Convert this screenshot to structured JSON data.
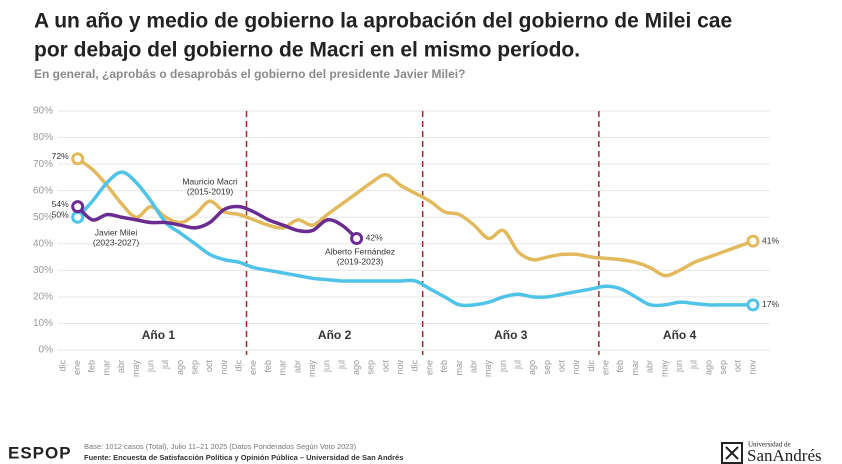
{
  "chart_data": {
    "type": "line",
    "title": [
      "A un año y medio de gobierno la aprobación del gobierno de Milei cae",
      "por debajo del gobierno de Macri en el mismo período."
    ],
    "subtitle": "En general, ¿aprobás o desaprobás el gobierno del presidente Javier Milei?",
    "categories": [
      "dic",
      "ene",
      "feb",
      "mar",
      "abr",
      "may",
      "jun",
      "jul",
      "ago",
      "sep",
      "oct",
      "nov",
      "dic",
      "ene",
      "feb",
      "mar",
      "abr",
      "may",
      "jun",
      "jul",
      "ago",
      "sep",
      "oct",
      "nov",
      "dic",
      "ene",
      "feb",
      "mar",
      "abr",
      "may",
      "jun",
      "jul",
      "ago",
      "sep",
      "oct",
      "nov",
      "dic",
      "ene",
      "feb",
      "mar",
      "abr",
      "may",
      "jun",
      "jul",
      "ago",
      "sep",
      "oct",
      "nov"
    ],
    "ylim": [
      0,
      90
    ],
    "yticks": [
      {
        "value": 0,
        "label": "0%"
      },
      {
        "value": 10,
        "label": "10%"
      },
      {
        "value": 20,
        "label": "20%"
      },
      {
        "value": 30,
        "label": "30%"
      },
      {
        "value": 40,
        "label": "40%"
      },
      {
        "value": 50,
        "label": "50%"
      },
      {
        "value": 60,
        "label": "60%"
      },
      {
        "value": 70,
        "label": "70%"
      },
      {
        "value": 80,
        "label": "80%"
      },
      {
        "value": 90,
        "label": "90%"
      }
    ],
    "grid": true,
    "annotations": [
      "Año 1",
      "Año 2",
      "Año 3",
      "Año 4"
    ],
    "series": [
      {
        "name": "Mauricio Macri",
        "period": "(2015-2019)",
        "color": "#e2b95c",
        "values": [
          null,
          72,
          68,
          62,
          55,
          50,
          54,
          50,
          48,
          51,
          56,
          52,
          51,
          49,
          47,
          46,
          49,
          47,
          51,
          55,
          59,
          63,
          66,
          62,
          59,
          56,
          52,
          51,
          47,
          42,
          45,
          37,
          34,
          35,
          36,
          36,
          35,
          34.5,
          34,
          33,
          31,
          28,
          30,
          33,
          35,
          37,
          39,
          41
        ],
        "value_labels": [
          null,
          "72%",
          null,
          null,
          null,
          null,
          null,
          null,
          null,
          null,
          null,
          null,
          null,
          null,
          null,
          null,
          null,
          null,
          null,
          null,
          null,
          null,
          null,
          null,
          null,
          null,
          null,
          null,
          null,
          null,
          null,
          null,
          null,
          null,
          null,
          null,
          null,
          null,
          null,
          null,
          null,
          null,
          null,
          null,
          null,
          null,
          null,
          "41%"
        ]
      },
      {
        "name": "Alberto Fernández",
        "period": "(2019-2023)",
        "color": "#4fc3e8",
        "values": [
          null,
          50,
          56,
          63,
          67,
          63,
          56,
          48,
          44,
          40,
          36,
          34,
          33,
          31,
          30,
          29,
          28,
          27,
          26.5,
          26,
          26,
          26,
          26,
          26,
          26,
          23,
          20,
          17,
          17,
          18,
          20,
          21,
          20,
          20,
          21,
          22,
          23,
          24,
          23,
          20,
          17,
          17,
          18,
          17.5,
          17,
          17,
          17,
          17
        ],
        "value_labels": [
          null,
          "50%",
          null,
          null,
          null,
          null,
          null,
          null,
          null,
          null,
          null,
          null,
          null,
          null,
          null,
          null,
          null,
          null,
          null,
          null,
          null,
          null,
          null,
          null,
          null,
          null,
          null,
          null,
          null,
          null,
          null,
          null,
          null,
          null,
          null,
          null,
          null,
          null,
          null,
          null,
          null,
          null,
          null,
          null,
          null,
          null,
          null,
          "17%"
        ]
      },
      {
        "name": "Javier Milei",
        "period": "(2023-2027)",
        "color": "#6a2c91",
        "values": [
          null,
          54,
          49,
          51,
          50,
          49,
          48,
          48,
          47,
          46,
          48,
          53,
          54,
          52,
          49,
          47,
          45,
          45,
          49,
          47,
          42,
          null,
          null,
          null,
          null,
          null,
          null,
          null,
          null,
          null,
          null,
          null,
          null,
          null,
          null,
          null,
          null,
          null,
          null,
          null,
          null,
          null,
          null,
          null,
          null,
          null,
          null,
          null
        ],
        "value_labels": [
          null,
          "54%",
          null,
          null,
          null,
          null,
          null,
          null,
          null,
          null,
          null,
          null,
          null,
          null,
          null,
          null,
          null,
          null,
          null,
          null,
          "42%",
          null,
          null,
          null,
          null,
          null,
          null,
          null,
          null,
          null,
          null,
          null,
          null,
          null,
          null,
          null,
          null,
          null,
          null,
          null,
          null,
          null,
          null,
          null,
          null,
          null,
          null,
          null
        ]
      }
    ]
  },
  "footer": {
    "logo": "ESPOP",
    "base": "Base: 1012 casos (Total), Julio 11–21 2025 (Datos Ponderados Según Voto 2023)",
    "source": "Fuente: Encuesta de Satisfacción Política y Opinión Pública – Universidad de San Andrés",
    "university": [
      "Universidad de",
      "SanAndrés"
    ]
  }
}
